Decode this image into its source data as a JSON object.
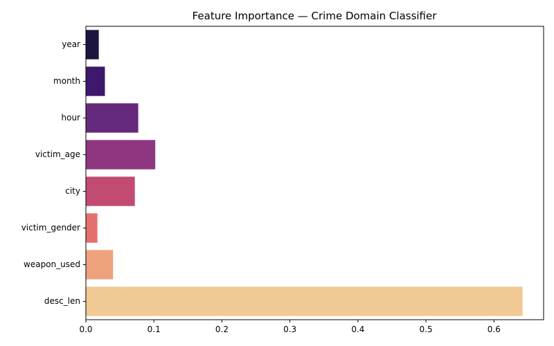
{
  "chart_data": {
    "type": "bar",
    "orientation": "horizontal",
    "title": "Feature Importance — Crime Domain Classifier",
    "xlabel": "",
    "ylabel": "",
    "categories": [
      "year",
      "month",
      "hour",
      "victim_age",
      "city",
      "victim_gender",
      "weapon_used",
      "desc_len"
    ],
    "values": [
      0.019,
      0.028,
      0.077,
      0.102,
      0.072,
      0.017,
      0.04,
      0.642
    ],
    "colors": [
      "#1c1540",
      "#3d186c",
      "#652a7c",
      "#8e3780",
      "#c24b72",
      "#e3706f",
      "#eda27d",
      "#f1c994"
    ],
    "xlim": [
      0,
      0.673
    ],
    "xticks": [
      0.0,
      0.1,
      0.2,
      0.3,
      0.4,
      0.5,
      0.6
    ],
    "xtick_labels": [
      "0.0",
      "0.1",
      "0.2",
      "0.3",
      "0.4",
      "0.5",
      "0.6"
    ],
    "grid": false,
    "legend": "none"
  }
}
